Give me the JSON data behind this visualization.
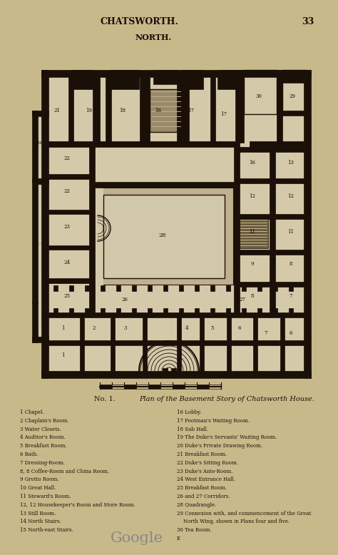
{
  "bg_color": "#c8b98a",
  "ink_color": "#1a1008",
  "title_top": "CHATSWORTH.",
  "page_num": "33",
  "north_label": "NORTH.",
  "caption_no": "No. 1.",
  "caption_text": "Plan of the Basement Story of Chatsworth House.",
  "legend_col1": [
    "1 Chapel.",
    "2 Chaplain's Room.",
    "3 Water Closets.",
    "4 Auditor's Room.",
    "5 Breakfast Room.",
    "6 Bath.",
    "7 Dressing-Room.",
    "8, 8 Coffee-Room and China Room.",
    "9 Grotto Room.",
    "10 Great Hall.",
    "11 Steward's Room.",
    "12, 12 Housekeeper's Room and Store Room.",
    "13 Still Room.",
    "14 North Stairs.",
    "15 North-east Stairs."
  ],
  "legend_col2": [
    "16 Lobby.",
    "17 Footman's Waiting Room.",
    "18 Sub Hall.",
    "19 The Duke's Servants' Waiting Room.",
    "20 Duke's Private Drawing Room.",
    "21 Breakfast Room.",
    "22 Duke's Sitting Room.",
    "23 Duke's Ante-Room.",
    "24 West Entrance Hall.",
    "25 Breakfast Room.",
    "26 and 27 Corridors.",
    "28 Quadrangle.",
    "29 Connexion with, and commencement of the Great",
    "    North Wing, shown in Plans four and five.",
    "30 Tea Room."
  ],
  "google_text": "Google",
  "wall_color": "#1a1008",
  "floor_color": "#c8b98a",
  "light_floor": "#d4c9a8",
  "courtyard_color": "#c0b090"
}
